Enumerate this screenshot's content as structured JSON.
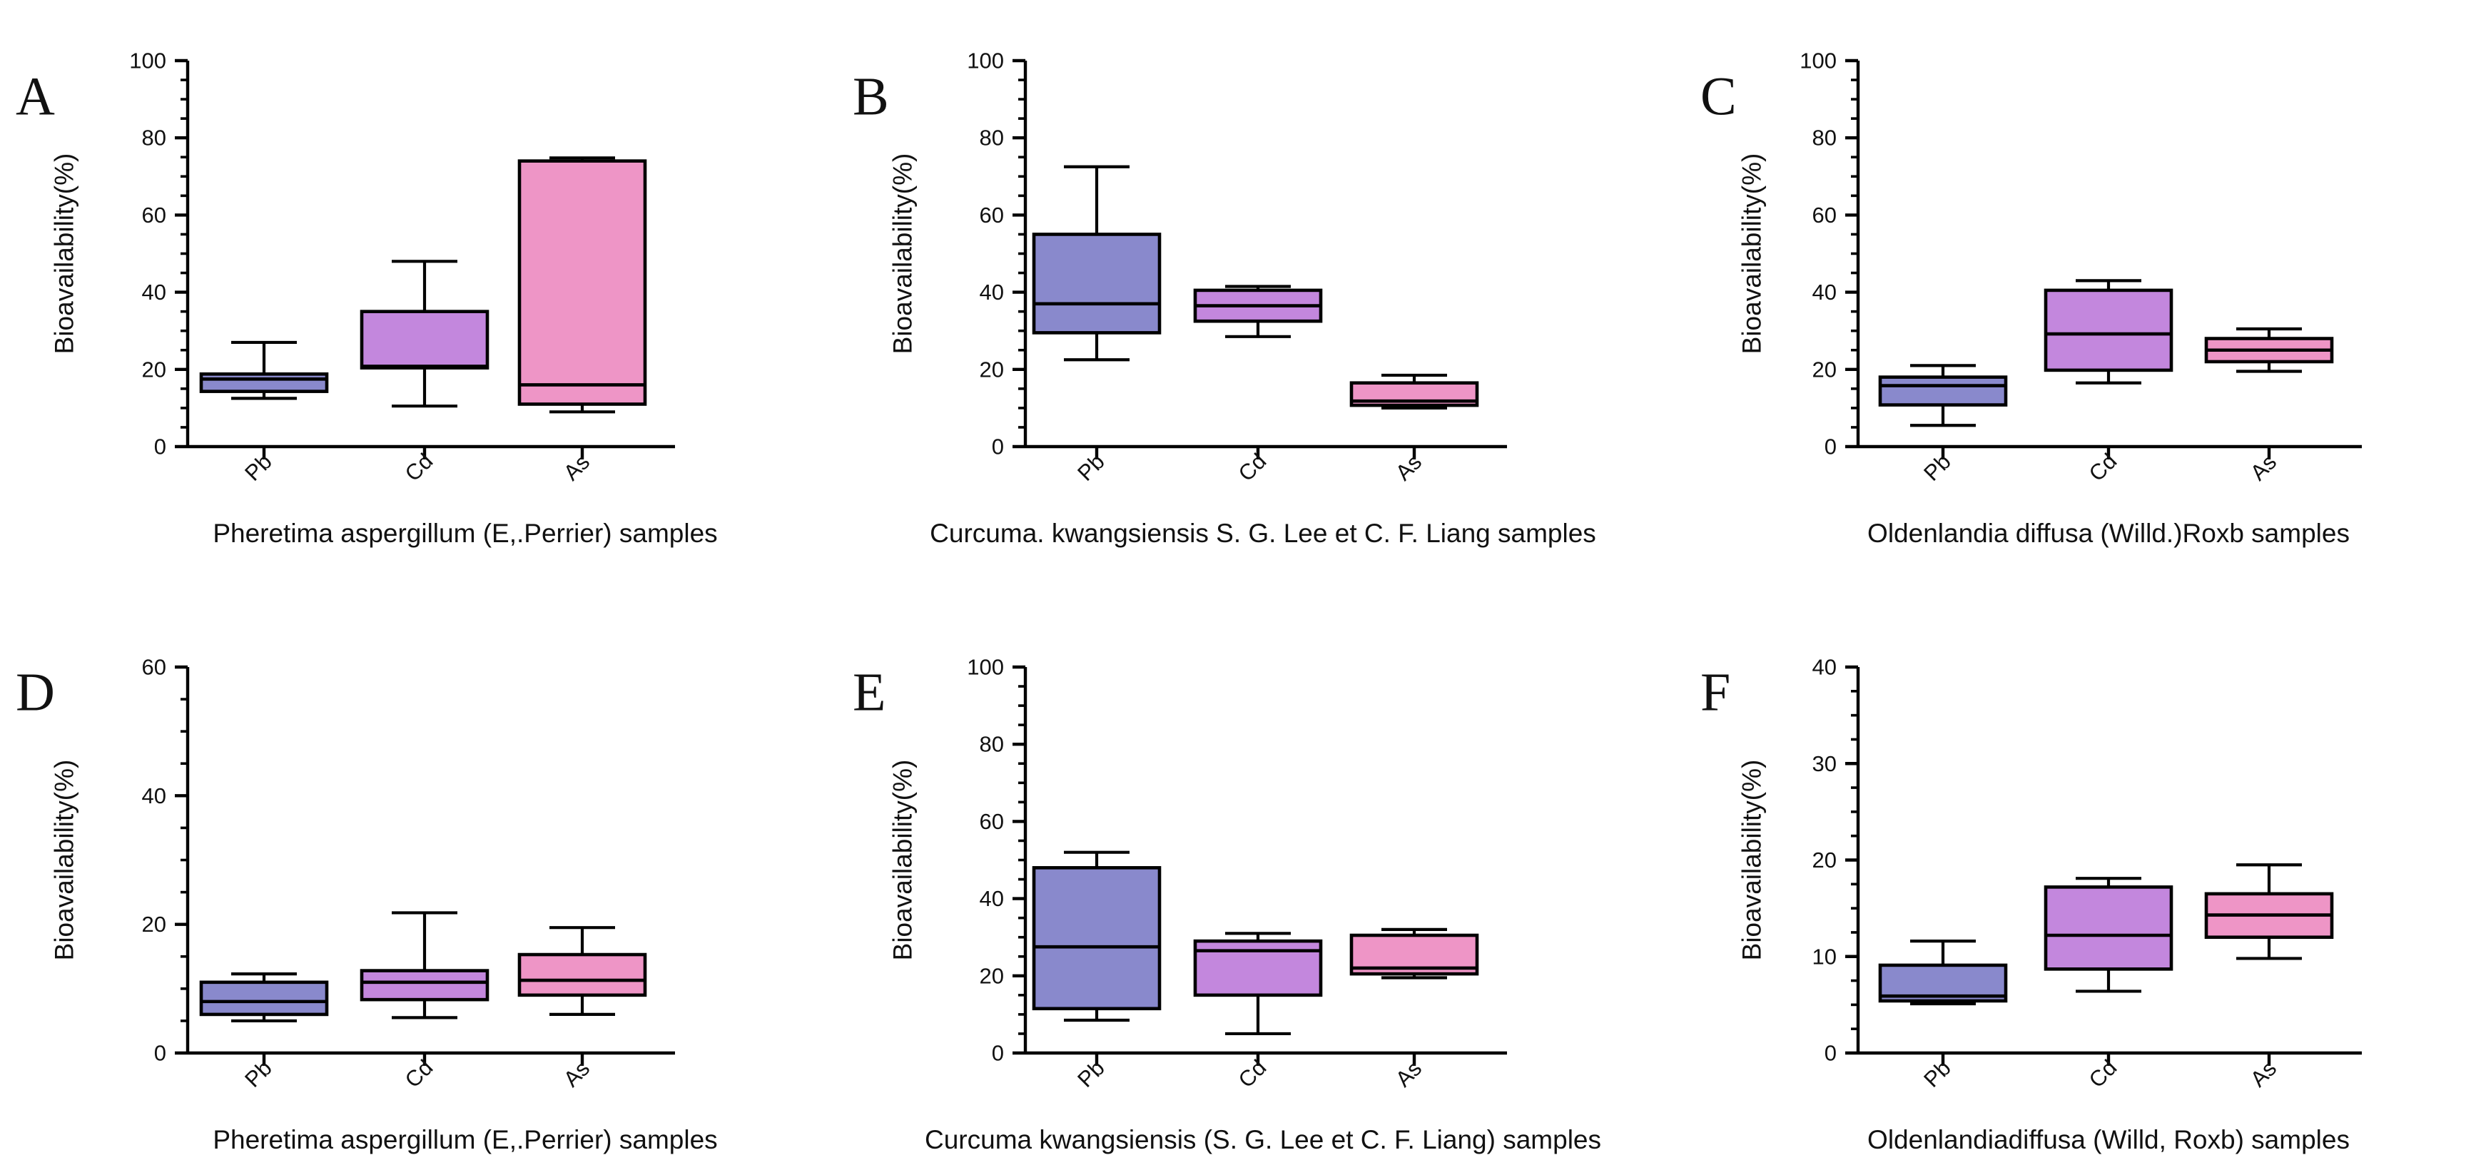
{
  "colors": {
    "Pb": "#8989cc",
    "Cd": "#c387dd",
    "As": "#ee95c6"
  },
  "chart_data": [
    {
      "panel": "A",
      "type": "box",
      "xlabel": "Pheretima aspergillum (E,.Perrier) samples",
      "ylabel": "Bioavailability(%)",
      "ylim": [
        0,
        100
      ],
      "yticks": [
        0,
        20,
        40,
        60,
        80,
        100
      ],
      "categories": [
        "Pb",
        "Cd",
        "As"
      ],
      "boxes": [
        {
          "min": 12.5,
          "q1": 14.3,
          "median": 17.5,
          "q3": 18.8,
          "max": 27.0
        },
        {
          "min": 10.5,
          "q1": 20.4,
          "median": 20.8,
          "q3": 35.0,
          "max": 48.0
        },
        {
          "min": 9.0,
          "q1": 11.0,
          "median": 16.0,
          "q3": 74.0,
          "max": 74.8
        }
      ]
    },
    {
      "panel": "B",
      "type": "box",
      "xlabel": "Curcuma. kwangsiensis S. G. Lee et C. F. Liang samples",
      "ylabel": "Bioavailability(%)",
      "ylim": [
        0,
        100
      ],
      "yticks": [
        0,
        20,
        40,
        60,
        80,
        100
      ],
      "categories": [
        "Pb",
        "Cd",
        "As"
      ],
      "boxes": [
        {
          "min": 22.5,
          "q1": 29.5,
          "median": 37.0,
          "q3": 55.0,
          "max": 72.5
        },
        {
          "min": 28.5,
          "q1": 32.5,
          "median": 36.5,
          "q3": 40.5,
          "max": 41.5
        },
        {
          "min": 10.0,
          "q1": 10.7,
          "median": 11.8,
          "q3": 16.5,
          "max": 18.5
        }
      ]
    },
    {
      "panel": "C",
      "type": "box",
      "xlabel": "Oldenlandia diffusa (Willd.)Roxb samples",
      "ylabel": "Bioavailability(%)",
      "ylim": [
        0,
        100
      ],
      "yticks": [
        0,
        20,
        40,
        60,
        80,
        100
      ],
      "categories": [
        "Pb",
        "Cd",
        "As"
      ],
      "boxes": [
        {
          "min": 5.5,
          "q1": 10.8,
          "median": 15.8,
          "q3": 18.0,
          "max": 21.0
        },
        {
          "min": 16.5,
          "q1": 19.8,
          "median": 29.2,
          "q3": 40.5,
          "max": 43.0
        },
        {
          "min": 19.5,
          "q1": 22.0,
          "median": 25.0,
          "q3": 28.0,
          "max": 30.5
        }
      ]
    },
    {
      "panel": "D",
      "type": "box",
      "xlabel": "Pheretima aspergillum (E,.Perrier) samples",
      "ylabel": "Bioavailability(%)",
      "ylim": [
        0,
        60
      ],
      "yticks": [
        0,
        20,
        40,
        60
      ],
      "categories": [
        "Pb",
        "Cd",
        "As"
      ],
      "boxes": [
        {
          "min": 5.0,
          "q1": 6.0,
          "median": 8.0,
          "q3": 11.0,
          "max": 12.3
        },
        {
          "min": 5.5,
          "q1": 8.3,
          "median": 11.0,
          "q3": 12.8,
          "max": 21.8
        },
        {
          "min": 6.0,
          "q1": 9.0,
          "median": 11.3,
          "q3": 15.3,
          "max": 19.5
        }
      ]
    },
    {
      "panel": "E",
      "type": "box",
      "xlabel": "Curcuma kwangsiensis (S. G. Lee et C. F. Liang) samples",
      "ylabel": "Bioavailability(%)",
      "ylim": [
        0,
        100
      ],
      "yticks": [
        0,
        20,
        40,
        60,
        80,
        100
      ],
      "categories": [
        "Pb",
        "Cd",
        "As"
      ],
      "boxes": [
        {
          "min": 8.5,
          "q1": 11.5,
          "median": 27.5,
          "q3": 48.0,
          "max": 52.0
        },
        {
          "min": 5.0,
          "q1": 15.0,
          "median": 26.5,
          "q3": 29.0,
          "max": 31.0
        },
        {
          "min": 19.5,
          "q1": 20.5,
          "median": 22.0,
          "q3": 30.5,
          "max": 32.0
        }
      ]
    },
    {
      "panel": "F",
      "type": "box",
      "xlabel": "Oldenlandiadiffusa (Willd, Roxb) samples",
      "ylabel": "Bioavailability(%)",
      "ylim": [
        0,
        40
      ],
      "yticks": [
        0,
        10,
        20,
        30,
        40
      ],
      "categories": [
        "Pb",
        "Cd",
        "As"
      ],
      "boxes": [
        {
          "min": 5.1,
          "q1": 5.4,
          "median": 5.9,
          "q3": 9.1,
          "max": 11.6
        },
        {
          "min": 6.4,
          "q1": 8.7,
          "median": 12.2,
          "q3": 17.2,
          "max": 18.1
        },
        {
          "min": 9.8,
          "q1": 12.0,
          "median": 14.3,
          "q3": 16.5,
          "max": 19.5
        }
      ]
    }
  ]
}
